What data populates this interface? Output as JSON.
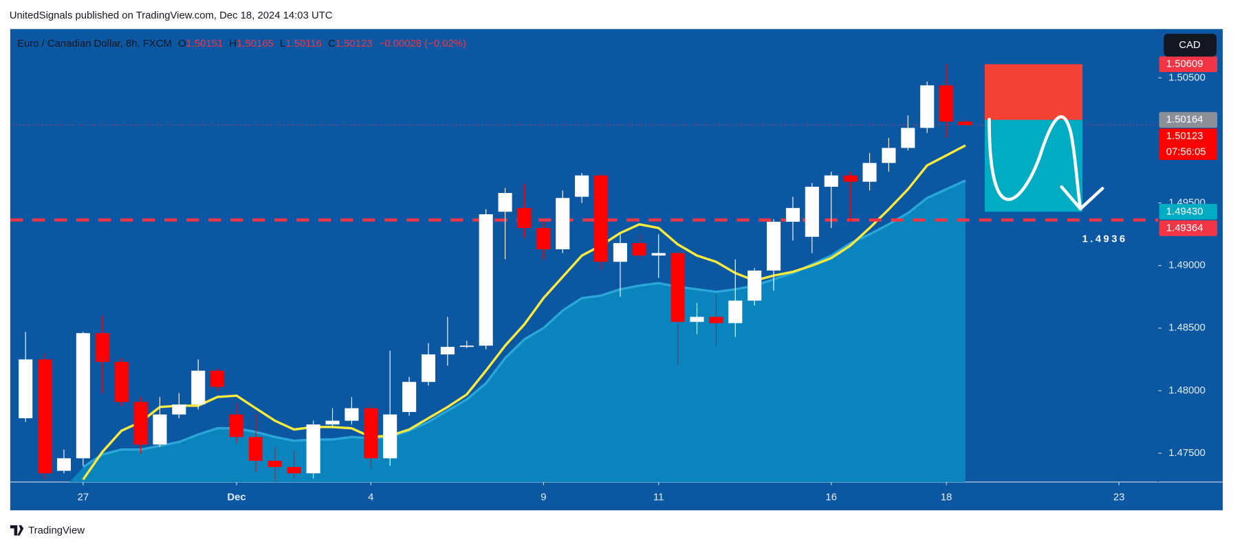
{
  "header": {
    "publisher": "UnitedSignals published on TradingView.com, Dec 18, 2024 14:03 UTC",
    "brand": "TradingView"
  },
  "chart_data": {
    "type": "candlestick",
    "symbol": "Euro  / Canadian Dollar, 8h, FXCM",
    "ohlc_labels": [
      "O",
      "H",
      "L",
      "C"
    ],
    "change": "−0.00028 (−0.02%)",
    "currency": "CAD",
    "xlim": [
      -0.8,
      59.05
    ],
    "xticks": [
      {
        "value": 3,
        "label": "27"
      },
      {
        "value": 11,
        "label": "Dec"
      },
      {
        "value": 18,
        "label": "4"
      },
      {
        "value": 27,
        "label": "9"
      },
      {
        "value": 33,
        "label": "11"
      },
      {
        "value": 42,
        "label": "16"
      },
      {
        "value": 48,
        "label": "18"
      },
      {
        "value": 57,
        "label": "23"
      }
    ],
    "ylim": [
      1.4727,
      1.5089
    ],
    "yticks": [
      {
        "value": 1.475,
        "label": "1.47500"
      },
      {
        "value": 1.48,
        "label": "1.48000"
      },
      {
        "value": 1.485,
        "label": "1.48500"
      },
      {
        "value": 1.49,
        "label": "1.49000"
      },
      {
        "value": 1.495,
        "label": "1.49500"
      },
      {
        "value": 1.505,
        "label": "1.50500"
      }
    ],
    "up_color": "#ffffff",
    "down_color": "#ff0000",
    "open": [
      1.4778,
      1.4825,
      1.4736,
      1.4746,
      1.4846,
      1.4823,
      1.4791,
      1.4757,
      1.4781,
      1.4789,
      1.4816,
      1.4781,
      1.4763,
      1.4744,
      1.4739,
      1.4734,
      1.4773,
      1.4776,
      1.4786,
      1.4746,
      1.4783,
      1.4807,
      1.4829,
      1.4835,
      1.4836,
      1.4943,
      1.4946,
      1.493,
      1.4913,
      1.4955,
      1.4972,
      1.4903,
      1.4918,
      1.4908,
      1.491,
      1.4855,
      1.4859,
      1.4854,
      1.4872,
      1.4896,
      1.4935,
      1.4923,
      1.4963,
      1.4972,
      1.4967,
      1.4982,
      1.4994,
      1.501,
      1.5044,
      1.50151
    ],
    "high": [
      1.4847,
      1.483,
      1.4753,
      1.4847,
      1.486,
      1.4826,
      1.4795,
      1.4795,
      1.4798,
      1.4825,
      1.4818,
      1.479,
      1.4782,
      1.4755,
      1.4752,
      1.4776,
      1.4786,
      1.4795,
      1.479,
      1.4832,
      1.4811,
      1.4838,
      1.4859,
      1.484,
      1.4945,
      1.4962,
      1.4965,
      1.4935,
      1.496,
      1.4974,
      1.4973,
      1.4925,
      1.4925,
      1.4925,
      1.4912,
      1.487,
      1.4877,
      1.4905,
      1.4898,
      1.4937,
      1.4955,
      1.4966,
      1.4975,
      1.4975,
      1.499,
      1.5002,
      1.502,
      1.5047,
      1.5061,
      1.50165
    ],
    "low": [
      1.4775,
      1.4729,
      1.4734,
      1.474,
      1.4798,
      1.4788,
      1.475,
      1.4755,
      1.4778,
      1.4785,
      1.48,
      1.4758,
      1.4735,
      1.4728,
      1.473,
      1.473,
      1.477,
      1.4773,
      1.4738,
      1.474,
      1.478,
      1.4804,
      1.482,
      1.4834,
      1.4833,
      1.4905,
      1.4922,
      1.4905,
      1.491,
      1.495,
      1.4897,
      1.4875,
      1.4905,
      1.489,
      1.482,
      1.4845,
      1.4836,
      1.4843,
      1.4868,
      1.488,
      1.492,
      1.491,
      1.493,
      1.4935,
      1.496,
      1.4975,
      1.4992,
      1.5006,
      1.5002,
      1.50116
    ],
    "close": [
      1.4825,
      1.4734,
      1.4746,
      1.4846,
      1.4823,
      1.4791,
      1.4757,
      1.4781,
      1.4789,
      1.4816,
      1.4803,
      1.4763,
      1.4744,
      1.4739,
      1.4734,
      1.4773,
      1.4776,
      1.4786,
      1.4746,
      1.4781,
      1.4807,
      1.4829,
      1.4835,
      1.4836,
      1.4941,
      1.4958,
      1.493,
      1.4913,
      1.4954,
      1.4972,
      1.4903,
      1.4918,
      1.4908,
      1.491,
      1.4855,
      1.4859,
      1.4854,
      1.4872,
      1.4896,
      1.4935,
      1.4946,
      1.4963,
      1.4972,
      1.4967,
      1.4982,
      1.4994,
      1.501,
      1.5044,
      1.5015,
      1.50123
    ],
    "overlays": [
      {
        "style": "area",
        "color": "#0a84bd",
        "line_color": "#2aa6d8",
        "values": [
          null,
          null,
          null,
          1.4739,
          1.4749,
          1.4753,
          1.4753,
          1.4756,
          1.4759,
          1.4765,
          1.477,
          1.477,
          1.4767,
          1.4763,
          1.476,
          1.4761,
          1.4761,
          1.4763,
          1.4762,
          1.4763,
          1.4768,
          1.4775,
          1.4784,
          1.4793,
          1.4806,
          1.4826,
          1.4841,
          1.485,
          1.4864,
          1.4874,
          1.4876,
          1.4881,
          1.4884,
          1.4886,
          1.4883,
          1.4881,
          1.4879,
          1.4881,
          1.4884,
          1.4889,
          1.4894,
          1.4901,
          1.4908,
          1.4918,
          1.4925,
          1.4933,
          1.4942,
          1.4954,
          1.4961,
          1.4968
        ]
      },
      {
        "style": "line",
        "color": "#ffeb3b",
        "values": [
          null,
          null,
          null,
          1.4729,
          1.4751,
          1.4768,
          1.4775,
          1.4787,
          1.4788,
          1.4788,
          1.4795,
          1.4796,
          1.4786,
          1.4776,
          1.4769,
          1.4771,
          1.4771,
          1.477,
          1.4763,
          1.4764,
          1.4769,
          1.4778,
          1.4787,
          1.4797,
          1.4816,
          1.4836,
          1.4853,
          1.4874,
          1.4891,
          1.4908,
          1.4916,
          1.4926,
          1.4933,
          1.493,
          1.4917,
          1.4908,
          1.4903,
          1.4894,
          1.4888,
          1.4892,
          1.4895,
          1.49,
          1.4906,
          1.4916,
          1.493,
          1.4945,
          1.4961,
          1.498,
          1.4988,
          1.4996
        ]
      }
    ],
    "countdown": "07:56:05",
    "levels": [
      {
        "value": 1.49364,
        "color": "#f23645",
        "label": "1.49364"
      }
    ],
    "position": {
      "x_range": [
        50,
        55.1
      ],
      "stop": 1.50609,
      "entry": 1.50164,
      "target": {
        "value": 1.4943,
        "label": "1.49430"
      },
      "stop_color": "#f44336",
      "target_color": "#00acc1"
    },
    "annotation": "1.4936"
  }
}
